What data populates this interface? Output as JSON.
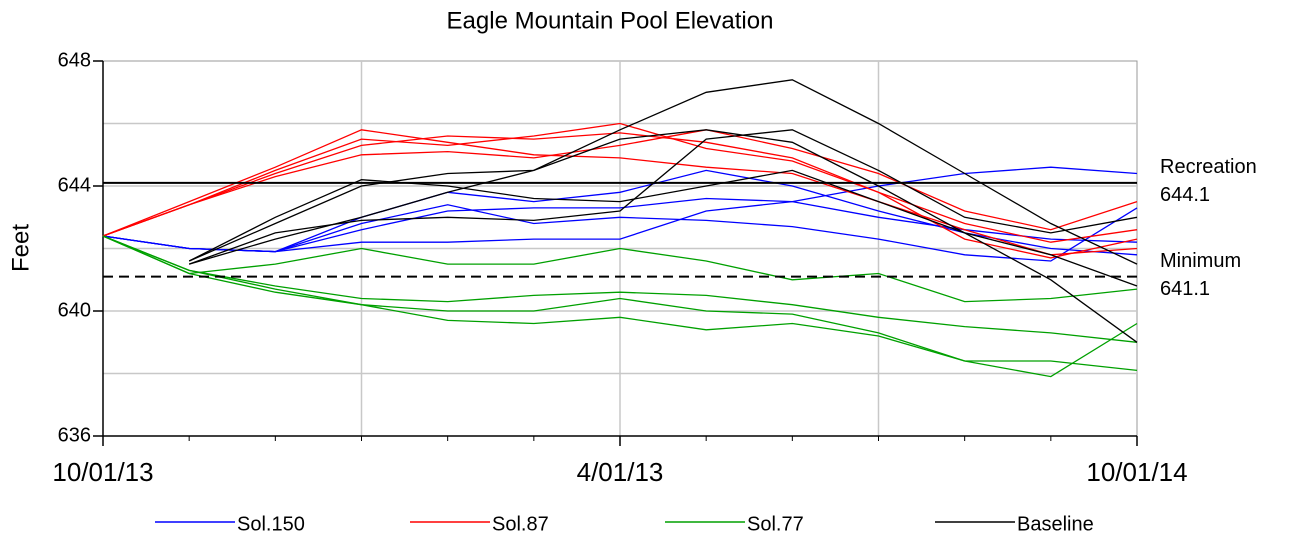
{
  "chart_data": {
    "type": "line",
    "title": "Eagle Mountain Pool Elevation",
    "y_label": "Feet",
    "x": [
      0,
      1,
      2,
      3,
      4,
      5,
      6,
      7,
      8,
      9,
      10,
      11,
      12
    ],
    "xlim": [
      0,
      12
    ],
    "xticks": [
      {
        "value": 0,
        "label": "10/01/13"
      },
      {
        "value": 6,
        "label": "4/01/13"
      },
      {
        "value": 12,
        "label": "10/01/14"
      }
    ],
    "x_gridlines": [
      3,
      6,
      9
    ],
    "x_minor_ticks": [
      1,
      2,
      3,
      4,
      5,
      7,
      8,
      9,
      10,
      11
    ],
    "ylim": [
      636,
      648
    ],
    "yticks": [
      636,
      640,
      644,
      648
    ],
    "y_gridlines": [
      638,
      640,
      642,
      644,
      646
    ],
    "grid": true,
    "reference_lines": [
      {
        "label": "Recreation",
        "value": 644.1,
        "style": "solid"
      },
      {
        "label": "Minimum",
        "value": 641.1,
        "style": "dashed"
      }
    ],
    "legend": "bottom",
    "series": [
      {
        "name": "Sol.150",
        "color": "#0000ff",
        "traces": [
          {
            "values": [
              642.4,
              642.0,
              641.9,
              642.6,
              643.2,
              643.3,
              643.3,
              643.6,
              643.5,
              643.0,
              642.6,
              642.3,
              642.2
            ]
          },
          {
            "values": [
              642.4,
              642.0,
              641.9,
              642.2,
              642.2,
              642.3,
              642.3,
              643.2,
              643.5,
              644.0,
              644.4,
              644.6,
              644.4
            ]
          },
          {
            "values": [
              642.4,
              642.0,
              641.9,
              643.0,
              643.8,
              643.5,
              643.8,
              644.5,
              644.0,
              643.2,
              642.5,
              642.0,
              641.8
            ]
          },
          {
            "values": [
              642.4,
              642.0,
              641.9,
              642.8,
              643.4,
              642.8,
              643.0,
              642.9,
              642.7,
              642.3,
              641.8,
              641.6,
              643.3
            ]
          }
        ]
      },
      {
        "name": "Sol.87",
        "color": "#ff0000",
        "traces": [
          {
            "values": [
              642.4,
              643.4,
              644.4,
              645.3,
              645.6,
              645.5,
              645.7,
              645.4,
              644.9,
              643.8,
              642.8,
              642.2,
              642.6
            ]
          },
          {
            "values": [
              642.4,
              643.4,
              644.3,
              645.0,
              645.1,
              644.9,
              645.3,
              645.8,
              645.2,
              644.4,
              643.2,
              642.6,
              643.5
            ]
          },
          {
            "values": [
              642.4,
              643.5,
              644.6,
              645.8,
              645.4,
              645.0,
              644.9,
              644.6,
              644.4,
              643.5,
              642.6,
              641.8,
              642.0
            ]
          },
          {
            "values": [
              642.4,
              643.4,
              644.5,
              645.5,
              645.3,
              645.6,
              646.0,
              645.2,
              644.8,
              643.8,
              642.3,
              641.7,
              642.3
            ]
          }
        ]
      },
      {
        "name": "Sol.77",
        "color": "#00a000",
        "traces": [
          {
            "values": [
              642.4,
              641.3,
              640.8,
              640.4,
              640.3,
              640.5,
              640.6,
              640.5,
              640.2,
              639.8,
              639.5,
              639.3,
              639.0
            ]
          },
          {
            "values": [
              642.4,
              641.2,
              641.5,
              642.0,
              641.5,
              641.5,
              642.0,
              641.6,
              641.0,
              641.2,
              640.3,
              640.4,
              640.7
            ]
          },
          {
            "values": [
              642.4,
              641.2,
              640.6,
              640.2,
              639.7,
              639.6,
              639.8,
              639.4,
              639.6,
              639.2,
              638.4,
              638.4,
              638.1
            ]
          },
          {
            "values": [
              642.4,
              641.3,
              640.7,
              640.2,
              640.0,
              640.0,
              640.4,
              640.0,
              639.9,
              639.3,
              638.4,
              637.9,
              639.6
            ]
          }
        ]
      },
      {
        "name": "Baseline",
        "color": "#000000",
        "traces": [
          {
            "values": [
              null,
              641.6,
              642.8,
              644.0,
              644.4,
              644.5,
              645.8,
              647.0,
              647.4,
              646.0,
              644.4,
              642.8,
              641.5
            ]
          },
          {
            "values": [
              null,
              641.5,
              642.3,
              643.0,
              643.8,
              644.5,
              645.5,
              645.8,
              645.4,
              644.0,
              642.5,
              641.0,
              639.0
            ]
          },
          {
            "values": [
              null,
              641.6,
              643.0,
              644.2,
              644.0,
              643.6,
              643.5,
              644.0,
              644.5,
              643.5,
              642.5,
              641.8,
              640.8
            ]
          },
          {
            "values": [
              null,
              641.5,
              642.5,
              642.9,
              643.0,
              642.9,
              643.2,
              645.5,
              645.8,
              644.5,
              643.0,
              642.5,
              643.0
            ]
          }
        ]
      }
    ]
  }
}
